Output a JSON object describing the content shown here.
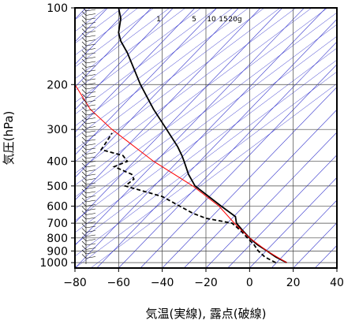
{
  "chart_data": {
    "type": "line",
    "subtype": "skew-T log-P sounding",
    "title": "",
    "xlabel": "気温(実線), 露点(破線)",
    "ylabel": "気圧(hPa)",
    "x_ticks": [
      "−80",
      "−60",
      "−40",
      "−20",
      "0",
      "20",
      "40"
    ],
    "x_tick_values": [
      -80,
      -60,
      -40,
      -20,
      0,
      20,
      40
    ],
    "y_ticks": [
      "100",
      "200",
      "300",
      "400",
      "500",
      "600",
      "700",
      "800",
      "900",
      "1000"
    ],
    "y_tick_values": [
      100,
      200,
      300,
      400,
      500,
      600,
      700,
      800,
      900,
      1000
    ],
    "xlim": [
      -80,
      40
    ],
    "ylim_hPa": [
      1050,
      100
    ],
    "y_scale": "log",
    "grid": true,
    "mixing_ratio_labels": [
      "1",
      "5",
      "10",
      "15",
      "20g"
    ],
    "series": [
      {
        "role": "temperature",
        "line": "solid",
        "color": "#000000",
        "points": [
          {
            "p": 1000,
            "x": 17
          },
          {
            "p": 950,
            "x": 12
          },
          {
            "p": 900,
            "x": 8
          },
          {
            "p": 850,
            "x": 3.5
          },
          {
            "p": 800,
            "x": 0
          },
          {
            "p": 750,
            "x": -3
          },
          {
            "p": 700,
            "x": -6
          },
          {
            "p": 660,
            "x": -6.5
          },
          {
            "p": 600,
            "x": -13
          },
          {
            "p": 500,
            "x": -25
          },
          {
            "p": 450,
            "x": -28
          },
          {
            "p": 400,
            "x": -30
          },
          {
            "p": 380,
            "x": -31
          },
          {
            "p": 350,
            "x": -33
          },
          {
            "p": 300,
            "x": -38
          },
          {
            "p": 250,
            "x": -44
          },
          {
            "p": 200,
            "x": -50
          },
          {
            "p": 150,
            "x": -56
          },
          {
            "p": 135,
            "x": -59
          },
          {
            "p": 125,
            "x": -60
          },
          {
            "p": 110,
            "x": -59
          },
          {
            "p": 100,
            "x": -60
          }
        ]
      },
      {
        "role": "dewpoint",
        "line": "dashed",
        "color": "#000000",
        "points": [
          {
            "p": 1000,
            "x": 12
          },
          {
            "p": 950,
            "x": 7
          },
          {
            "p": 900,
            "x": 4
          },
          {
            "p": 850,
            "x": 2
          },
          {
            "p": 800,
            "x": -1
          },
          {
            "p": 750,
            "x": -4
          },
          {
            "p": 700,
            "x": -8
          },
          {
            "p": 670,
            "x": -20
          },
          {
            "p": 640,
            "x": -26
          },
          {
            "p": 600,
            "x": -32
          },
          {
            "p": 550,
            "x": -40
          },
          {
            "p": 520,
            "x": -50
          },
          {
            "p": 500,
            "x": -57
          },
          {
            "p": 470,
            "x": -53
          },
          {
            "p": 450,
            "x": -54
          },
          {
            "p": 420,
            "x": -62
          },
          {
            "p": 400,
            "x": -56
          },
          {
            "p": 380,
            "x": -58
          },
          {
            "p": 360,
            "x": -68
          },
          {
            "p": 330,
            "x": -65
          },
          {
            "p": 310,
            "x": -63
          }
        ]
      },
      {
        "role": "parcel",
        "line": "solid",
        "color": "#ff0000",
        "points": [
          {
            "p": 1000,
            "x": 17
          },
          {
            "p": 900,
            "x": 8
          },
          {
            "p": 800,
            "x": 0
          },
          {
            "p": 700,
            "x": -7
          },
          {
            "p": 600,
            "x": -14
          },
          {
            "p": 500,
            "x": -26
          },
          {
            "p": 400,
            "x": -44
          },
          {
            "p": 300,
            "x": -63
          },
          {
            "p": 250,
            "x": -73
          },
          {
            "p": 200,
            "x": -80
          }
        ]
      }
    ],
    "colors": {
      "grid": "#444444",
      "isotherm": "#3333cc",
      "adiabat": "#3333cc",
      "parcel": "#ff0000",
      "profile": "#000000"
    }
  }
}
